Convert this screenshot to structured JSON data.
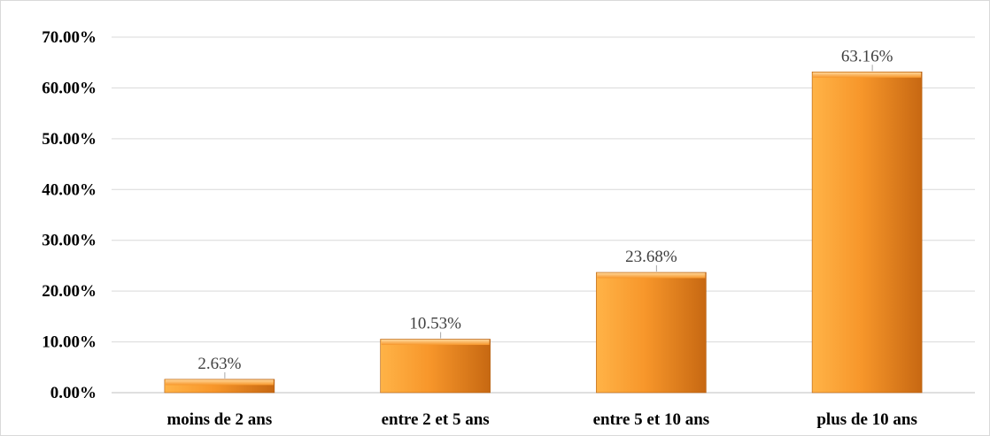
{
  "chart_data": {
    "type": "bar",
    "categories": [
      "moins de 2 ans",
      "entre 2 et 5 ans",
      "entre 5 et 10 ans",
      "plus de 10 ans"
    ],
    "values": [
      2.63,
      10.53,
      23.68,
      63.16
    ],
    "data_labels": [
      "2.63%",
      "10.53%",
      "23.68%",
      "63.16%"
    ],
    "y_ticks": [
      "0.00%",
      "10.00%",
      "20.00%",
      "30.00%",
      "40.00%",
      "50.00%",
      "60.00%",
      "70.00%"
    ],
    "ylim": [
      0,
      70
    ],
    "title": "",
    "xlabel": "",
    "ylabel": "",
    "grid": true,
    "legend": "none",
    "colors": {
      "bar_light": "#ffb347",
      "bar_mid": "#f7962a",
      "bar_dark": "#c76812",
      "grid": "#d9d9d9",
      "axis": "#bfbfbf"
    }
  }
}
